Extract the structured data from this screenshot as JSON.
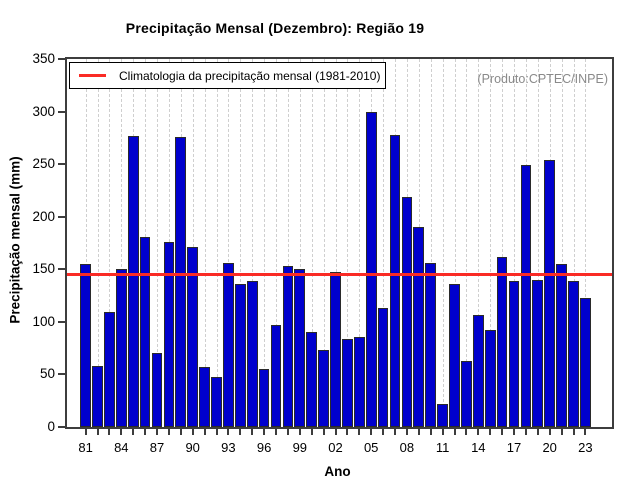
{
  "title": "Precipitação Mensal (Dezembro): Região 19",
  "product_credit": "(Produto:CPTEC/INPE)",
  "legend": {
    "label": "Climatologia da precipitação mensal (1981-2010)"
  },
  "axes": {
    "x_label": "Ano",
    "y_label": "Precipitação mensal (mm)",
    "y_ticks": [
      0,
      50,
      100,
      150,
      200,
      250,
      300,
      350
    ],
    "x_tick_labels": [
      "81",
      "84",
      "87",
      "90",
      "93",
      "96",
      "99",
      "02",
      "05",
      "08",
      "11",
      "14",
      "17",
      "20",
      "23"
    ],
    "x_label_every_years": 3
  },
  "colors": {
    "bar_fill": "#0000cd",
    "bar_border": "#2a2a2a",
    "climatology_line": "#fa2b25",
    "gridline": "#cfcfcf",
    "product_text": "#8a8a8a",
    "axis": "#3d3d3d"
  },
  "chart_data": {
    "type": "bar",
    "title": "Precipitação Mensal (Dezembro): Região 19",
    "xlabel": "Ano",
    "ylabel": "Precipitação mensal (mm)",
    "ylim": [
      0,
      350
    ],
    "grid": "vertical-dashed-per-year",
    "legend_position": "top-left-inside",
    "years": [
      1981,
      1982,
      1983,
      1984,
      1985,
      1986,
      1987,
      1988,
      1989,
      1990,
      1991,
      1992,
      1993,
      1994,
      1995,
      1996,
      1997,
      1998,
      1999,
      2000,
      2001,
      2002,
      2003,
      2004,
      2005,
      2006,
      2007,
      2008,
      2009,
      2010,
      2011,
      2012,
      2013,
      2014,
      2015,
      2016,
      2017,
      2018,
      2019,
      2020,
      2021,
      2022,
      2023
    ],
    "values": [
      155,
      58,
      109,
      150,
      277,
      181,
      70,
      176,
      276,
      171,
      57,
      48,
      156,
      136,
      139,
      55,
      97,
      153,
      150,
      90,
      73,
      147,
      84,
      86,
      300,
      113,
      278,
      219,
      190,
      156,
      22,
      136,
      63,
      107,
      92,
      162,
      139,
      249,
      140,
      254,
      155,
      139,
      123
    ],
    "climatology": {
      "label": "Climatologia da precipitação mensal (1981-2010)",
      "value": 145,
      "period": "1981-2010"
    },
    "annotations": [
      "(Produto:CPTEC/INPE)"
    ]
  }
}
